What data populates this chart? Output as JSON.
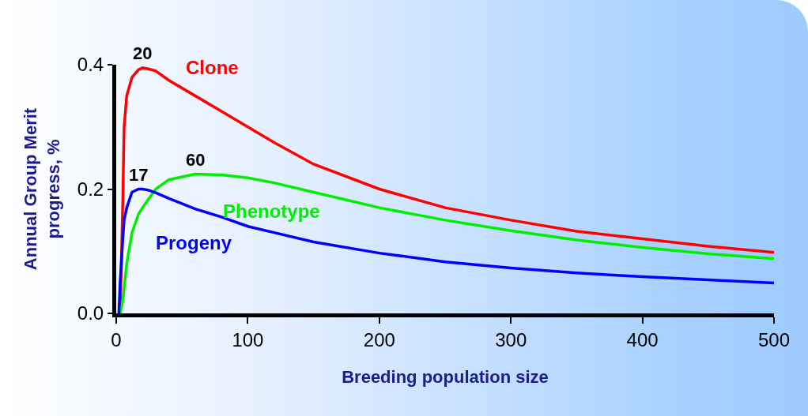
{
  "chart_data": {
    "type": "line",
    "xlabel": "Breeding population size",
    "ylabel": "Annual Group Merit\nprogress, %",
    "x": [
      2,
      3,
      5,
      6,
      8,
      12,
      17,
      20,
      25,
      30,
      40,
      60,
      80,
      100,
      120,
      150,
      200,
      250,
      300,
      350,
      400,
      450,
      500
    ],
    "series": [
      {
        "name": "Clone",
        "color": "#ff0000",
        "values": [
          null,
          0,
          0.18,
          0.3,
          0.35,
          0.38,
          0.392,
          0.395,
          0.393,
          0.39,
          0.375,
          0.35,
          0.325,
          0.3,
          0.275,
          0.24,
          0.2,
          0.17,
          0.15,
          0.132,
          0.12,
          0.108,
          0.098
        ]
      },
      {
        "name": "Phenotype",
        "color": "#00ee00",
        "values": [
          null,
          0,
          0.02,
          0.04,
          0.08,
          0.13,
          0.16,
          0.17,
          0.185,
          0.2,
          0.215,
          0.224,
          0.223,
          0.218,
          0.21,
          0.195,
          0.17,
          0.15,
          0.133,
          0.118,
          0.106,
          0.096,
          0.088
        ]
      },
      {
        "name": "Progeny",
        "color": "#0000ff",
        "values": [
          0,
          0.05,
          0.12,
          0.15,
          0.17,
          0.195,
          0.2,
          0.2,
          0.198,
          0.194,
          0.185,
          0.168,
          0.155,
          0.14,
          0.13,
          0.115,
          0.097,
          0.083,
          0.073,
          0.065,
          0.059,
          0.054,
          0.049
        ]
      }
    ],
    "annotations": [
      {
        "text": "20",
        "x": 20,
        "y": 0.395
      },
      {
        "text": "17",
        "x": 17,
        "y": 0.2
      },
      {
        "text": "60",
        "x": 60,
        "y": 0.224
      }
    ],
    "xlim": [
      0,
      500
    ],
    "xticks": [
      0,
      100,
      200,
      300,
      400,
      500
    ],
    "ylim": [
      0,
      0.4
    ],
    "yticks": [
      {
        "value": 0,
        "label": "0.0"
      },
      {
        "value": 0.2,
        "label": "0.2"
      },
      {
        "value": 0.4,
        "label": "0.4"
      }
    ],
    "grid": false,
    "legend": false,
    "marker": "none",
    "line_style": "solid"
  }
}
